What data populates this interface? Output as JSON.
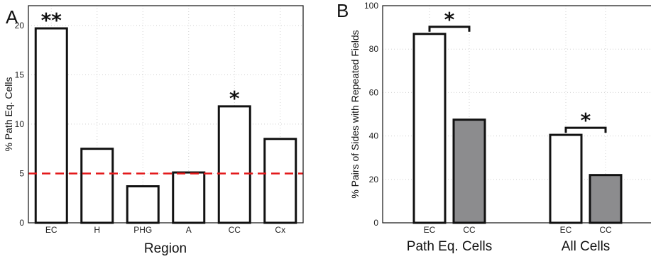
{
  "chart_data": [
    {
      "panel": "A",
      "type": "bar",
      "xlabel": "Region",
      "ylabel": "% Path Eq. Cells",
      "ylim": [
        0,
        22
      ],
      "yticks": [
        0,
        5,
        10,
        15,
        20
      ],
      "grid": true,
      "categories": [
        "EC",
        "H",
        "PHG",
        "A",
        "CC",
        "Cx"
      ],
      "values": [
        19.7,
        7.5,
        3.7,
        5.1,
        11.8,
        8.5
      ],
      "annotations": [
        "**",
        "",
        "",
        "",
        "*",
        ""
      ],
      "reference_line": {
        "value": 5,
        "color": "#e31a1c",
        "style": "dashed"
      },
      "bar_fill": "#ffffff",
      "bar_stroke": "#111111"
    },
    {
      "panel": "B",
      "type": "bar",
      "ylabel": "% Pairs of Sides with Repeated Fields",
      "ylim": [
        0,
        100
      ],
      "yticks": [
        0,
        20,
        40,
        60,
        80,
        100
      ],
      "grid": true,
      "groups": [
        {
          "label": "Path Eq. Cells",
          "categories": [
            "EC",
            "CC"
          ],
          "values": [
            87,
            47.5
          ],
          "significance": "*"
        },
        {
          "label": "All Cells",
          "categories": [
            "EC",
            "CC"
          ],
          "values": [
            40.5,
            22
          ],
          "significance": "*"
        }
      ],
      "bar_fills": [
        "#ffffff",
        "#8c8c8e"
      ],
      "bar_stroke": "#111111"
    }
  ]
}
